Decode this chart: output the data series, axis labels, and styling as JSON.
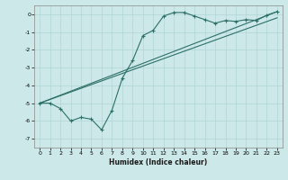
{
  "xlabel": "Humidex (Indice chaleur)",
  "ylabel": "",
  "xlim": [
    -0.5,
    23.5
  ],
  "ylim": [
    -7.5,
    0.5
  ],
  "xticks": [
    0,
    1,
    2,
    3,
    4,
    5,
    6,
    7,
    8,
    9,
    10,
    11,
    12,
    13,
    14,
    15,
    16,
    17,
    18,
    19,
    20,
    21,
    22,
    23
  ],
  "yticks": [
    0,
    -1,
    -2,
    -3,
    -4,
    -5,
    -6,
    -7
  ],
  "bg_color": "#cce8e8",
  "grid_color": "#b0d4d4",
  "line_color": "#2d7068",
  "line1_x": [
    0,
    1,
    2,
    3,
    4,
    5,
    6,
    7,
    8,
    9,
    10,
    11,
    12,
    13,
    14,
    15,
    16,
    17,
    18,
    19,
    20,
    21,
    22,
    23
  ],
  "line1_y": [
    -5.0,
    -5.0,
    -5.3,
    -6.0,
    -5.8,
    -5.9,
    -6.5,
    -5.4,
    -3.6,
    -2.6,
    -1.2,
    -0.9,
    -0.1,
    0.1,
    0.1,
    -0.1,
    -0.3,
    -0.5,
    -0.35,
    -0.4,
    -0.3,
    -0.35,
    -0.05,
    0.15
  ],
  "line2_x": [
    0,
    23
  ],
  "line2_y": [
    -5.0,
    0.15
  ],
  "line3_x": [
    0,
    23
  ],
  "line3_y": [
    -5.0,
    -0.2
  ],
  "xlabel_fontsize": 5.5,
  "tick_fontsize": 4.5
}
